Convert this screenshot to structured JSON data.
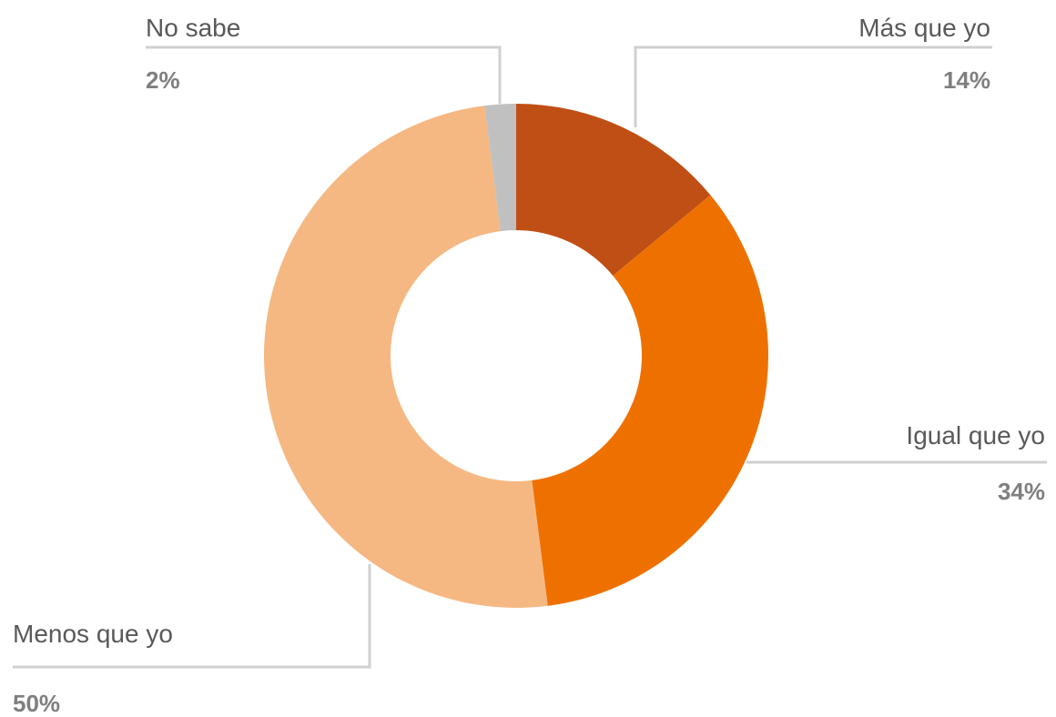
{
  "chart_data": {
    "type": "donut",
    "categories": [
      "Más que yo",
      "Igual que yo",
      "Menos que yo",
      "No sabe"
    ],
    "values": [
      14,
      34,
      50,
      2
    ],
    "value_labels": [
      "14%",
      "34%",
      "50%",
      "2%"
    ],
    "colors": [
      "#c04f15",
      "#ee7100",
      "#f5b882",
      "#c0c0c0"
    ]
  }
}
